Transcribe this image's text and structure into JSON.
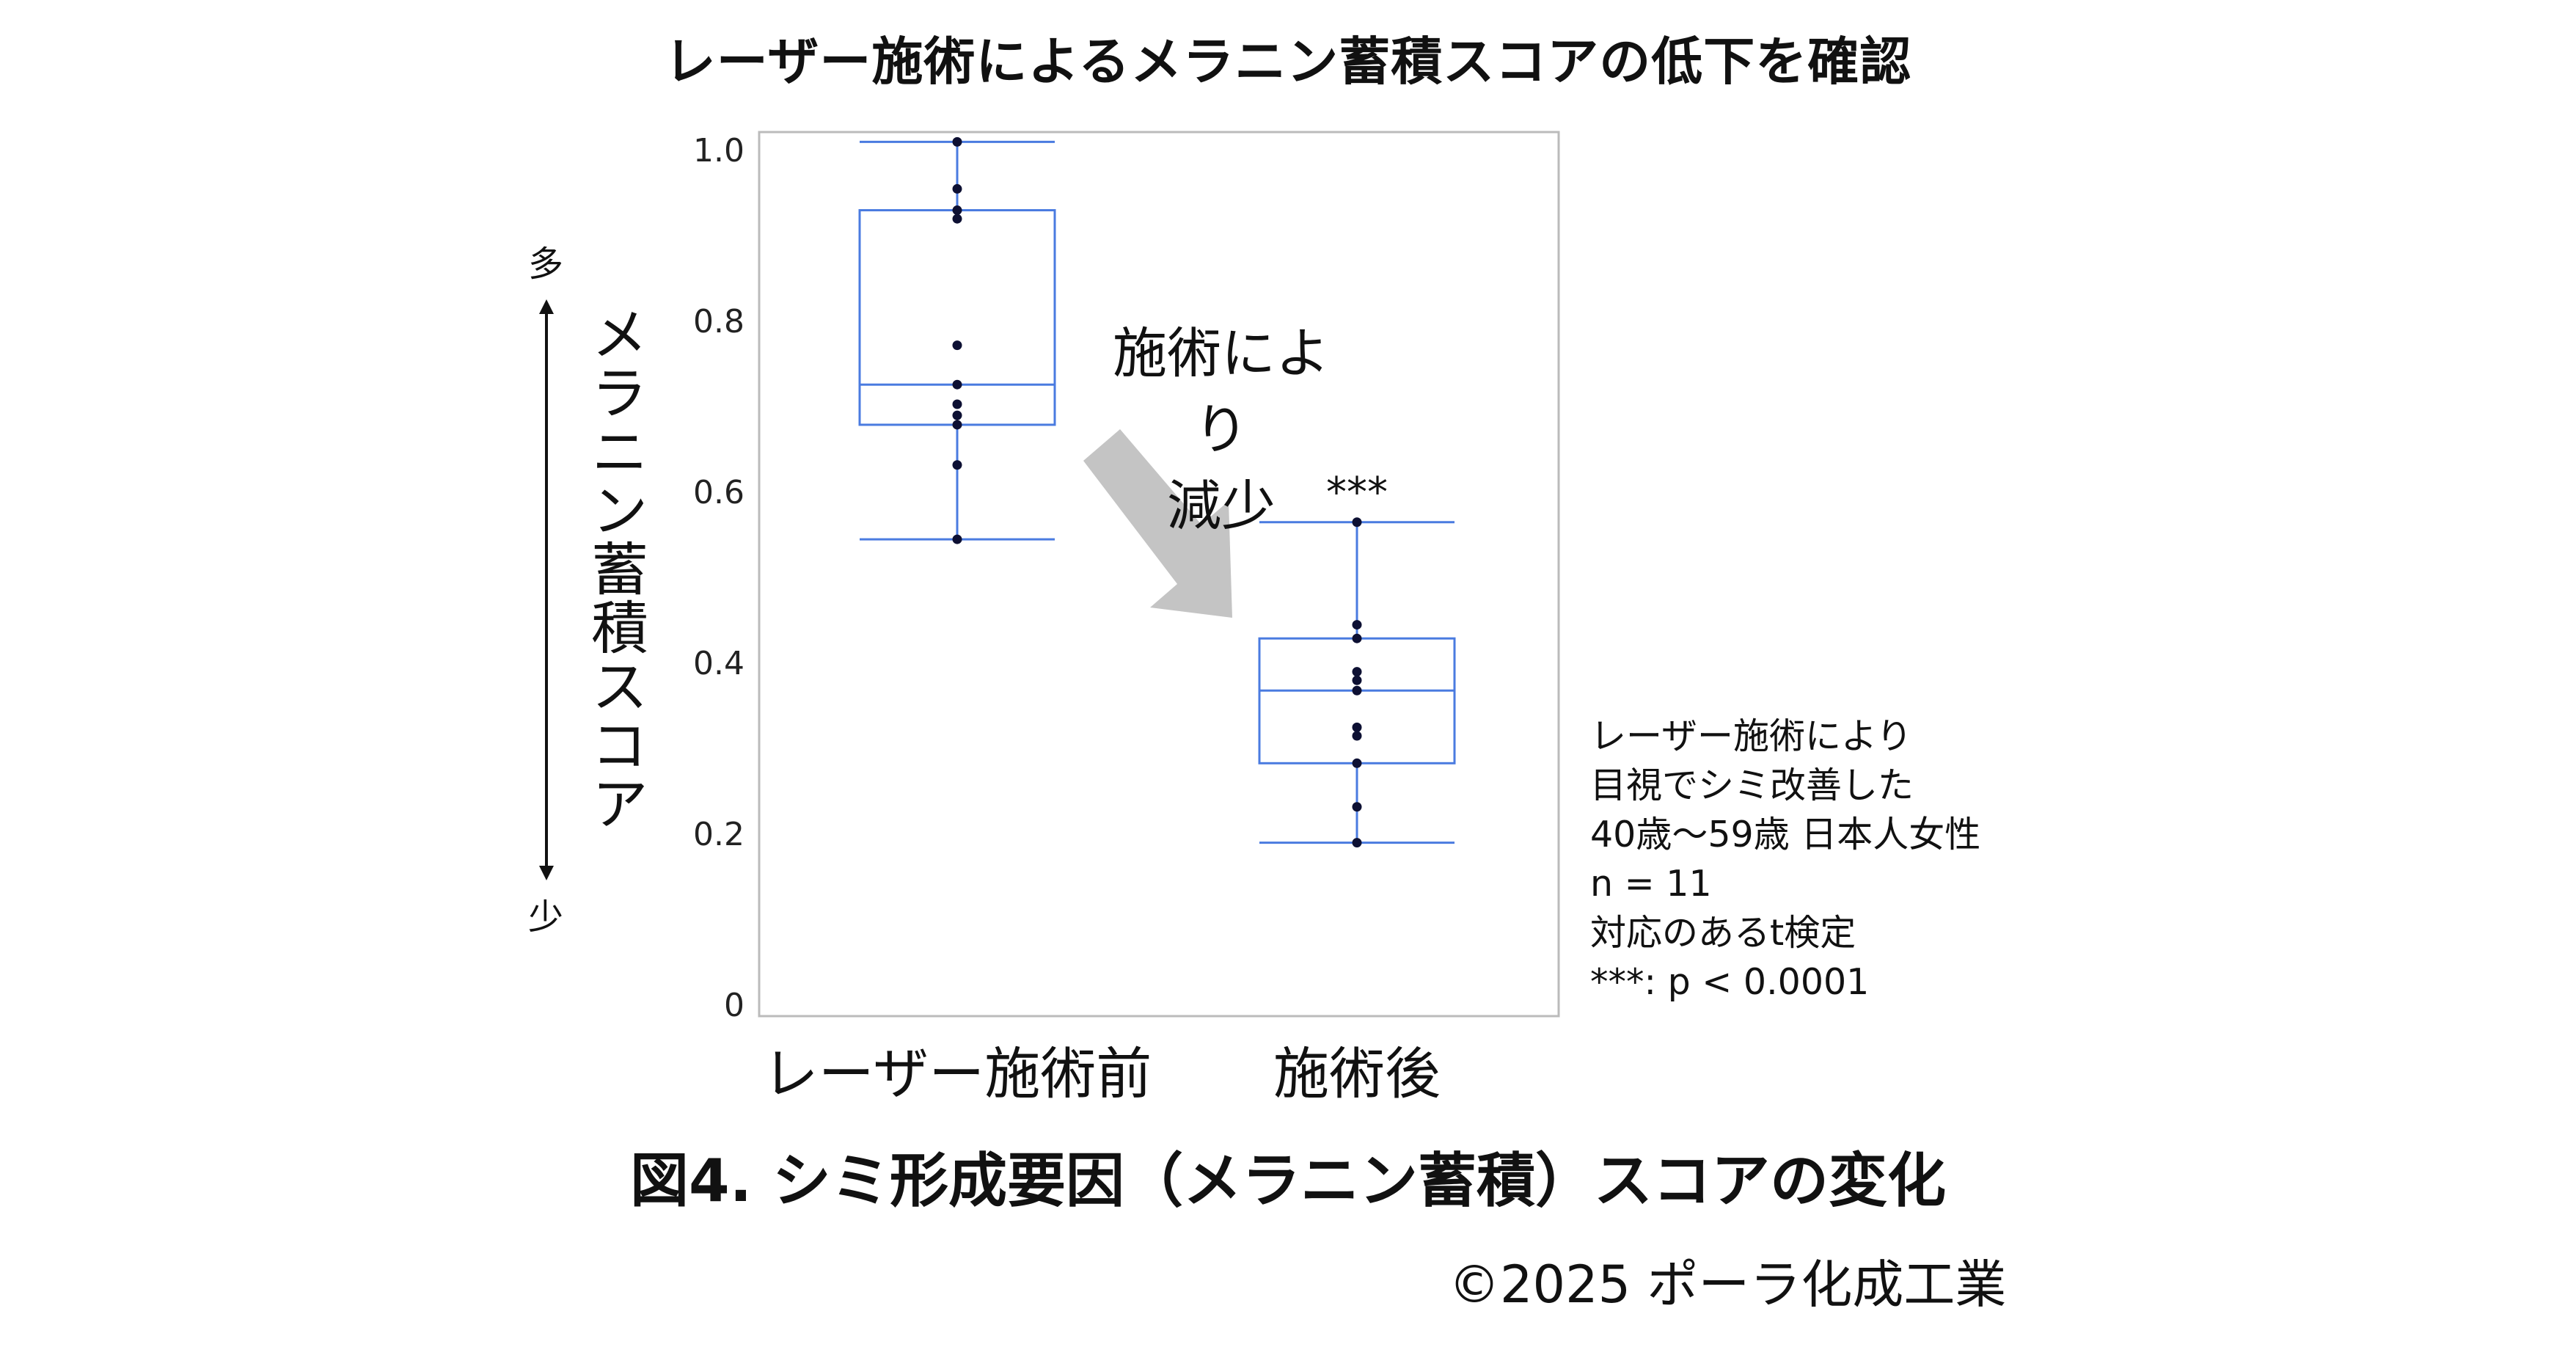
{
  "title": "レーザー施術によるメラニン蓄積スコアの低下を確認",
  "caption": "図4. シミ形成要因（メラニン蓄積）スコアの変化",
  "copyright": "©2025 ポーラ化成工業",
  "annotation_lines": [
    "施術により",
    "減少"
  ],
  "y_axis_scale": {
    "more": "多",
    "less": "少"
  },
  "notes": [
    "レーザー施術により",
    "目視でシミ改善した",
    "40歳～59歳 日本人女性",
    "n = 11",
    "対応のあるt検定",
    "***: p < 0.0001"
  ],
  "colors": {
    "box": "#4a7be0",
    "point": "#0d1033",
    "arrow": "#c4c4c4",
    "frame": "#bbbbbb"
  },
  "chart_data": {
    "type": "box",
    "ylabel": "メラニン蓄積スコア",
    "ylim": [
      0,
      1.0
    ],
    "yticks": [
      {
        "value": 0,
        "label": "0"
      },
      {
        "value": 0.2,
        "label": "0.2"
      },
      {
        "value": 0.4,
        "label": "0.4"
      },
      {
        "value": 0.6,
        "label": "0.6"
      },
      {
        "value": 0.8,
        "label": "0.8"
      },
      {
        "value": 1.0,
        "label": "1.0"
      }
    ],
    "categories": [
      "レーザー施術前",
      "施術後"
    ],
    "boxes": [
      {
        "category": "レーザー施術前",
        "whisker_low": 0.545,
        "q1": 0.679,
        "median": 0.726,
        "q3": 0.93,
        "whisker_high": 1.01,
        "points": [
          1.01,
          0.955,
          0.93,
          0.92,
          0.772,
          0.726,
          0.703,
          0.69,
          0.679,
          0.632,
          0.545
        ]
      },
      {
        "category": "施術後",
        "whisker_low": 0.19,
        "q1": 0.283,
        "median": 0.368,
        "q3": 0.429,
        "whisker_high": 0.565,
        "points": [
          0.565,
          0.445,
          0.429,
          0.39,
          0.38,
          0.368,
          0.325,
          0.315,
          0.283,
          0.232,
          0.19
        ]
      }
    ],
    "significance": {
      "category": "施術後",
      "label": "***"
    }
  }
}
